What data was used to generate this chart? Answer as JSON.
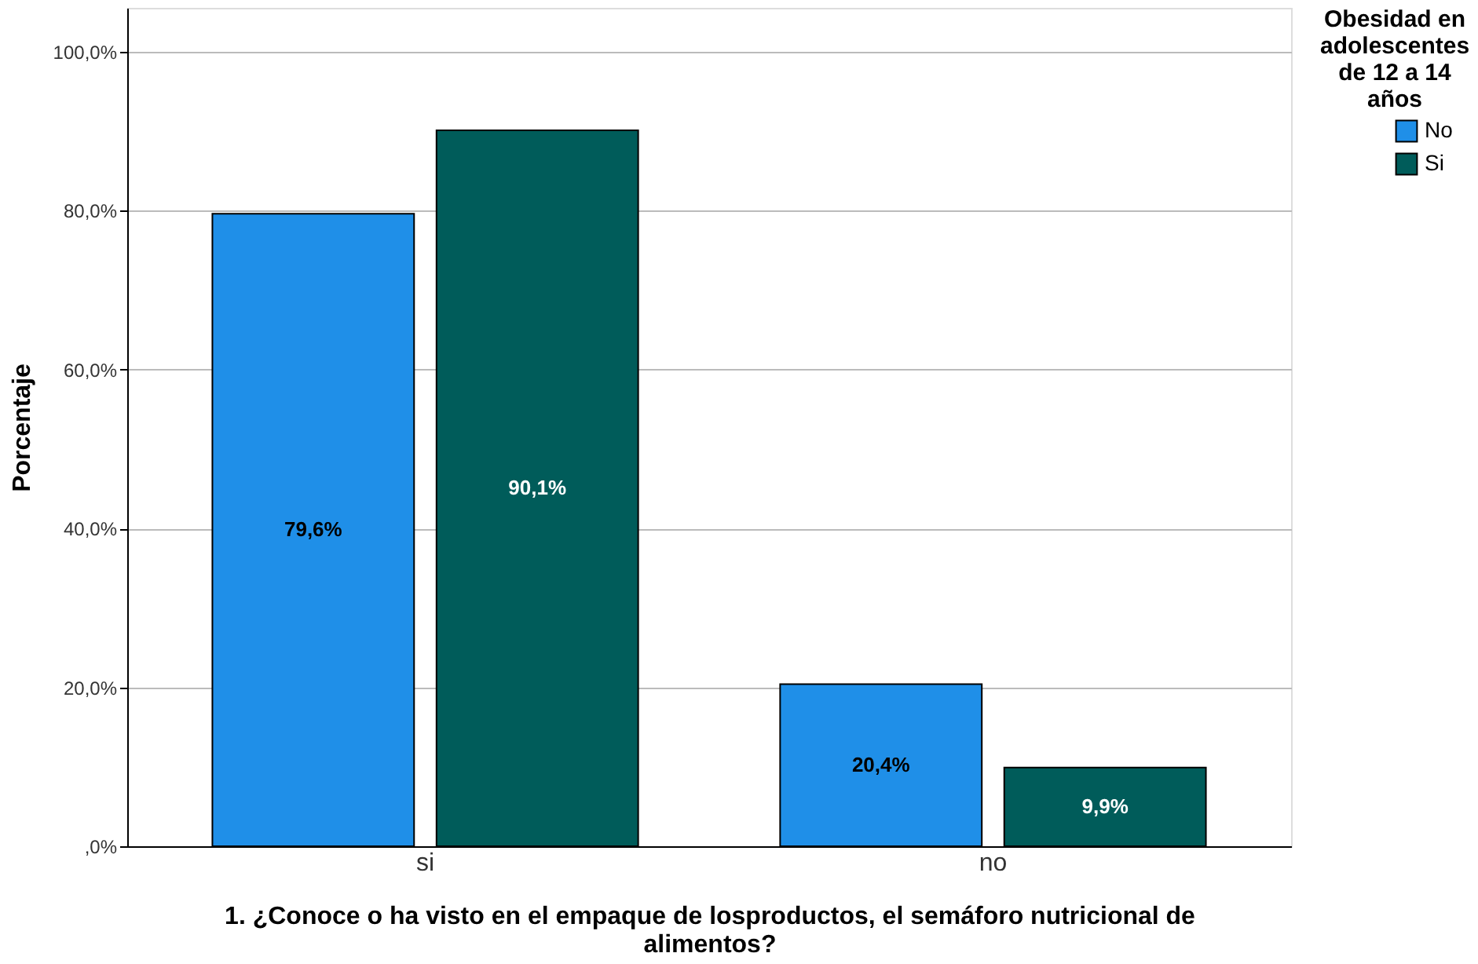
{
  "chart_data": {
    "type": "bar",
    "xlabel": "1. ¿Conoce o ha visto en el empaque de losproductos, el semáforo nutricional de alimentos?",
    "ylabel": "Porcentaje",
    "legend_title": "Obesidad en adolescentes de 12 a 14 años",
    "categories": [
      "si",
      "no"
    ],
    "series": [
      {
        "name": "No",
        "color": "#1f8fe8",
        "values": [
          79.6,
          20.4
        ],
        "value_labels": [
          "79,6%",
          "20,4%"
        ]
      },
      {
        "name": "Si",
        "color": "#005c5a",
        "values": [
          90.1,
          9.9
        ],
        "value_labels": [
          "90,1%",
          "9,9%"
        ]
      }
    ],
    "ylim": [
      0,
      105.5
    ],
    "yticks": [
      {
        "value": 0,
        "label": ",0%"
      },
      {
        "value": 20,
        "label": "20,0%"
      },
      {
        "value": 40,
        "label": "40,0%"
      },
      {
        "value": 60,
        "label": "60,0%"
      },
      {
        "value": 80,
        "label": "80,0%"
      },
      {
        "value": 100,
        "label": "100,0%"
      }
    ],
    "grid": "y",
    "legend": "top right"
  }
}
